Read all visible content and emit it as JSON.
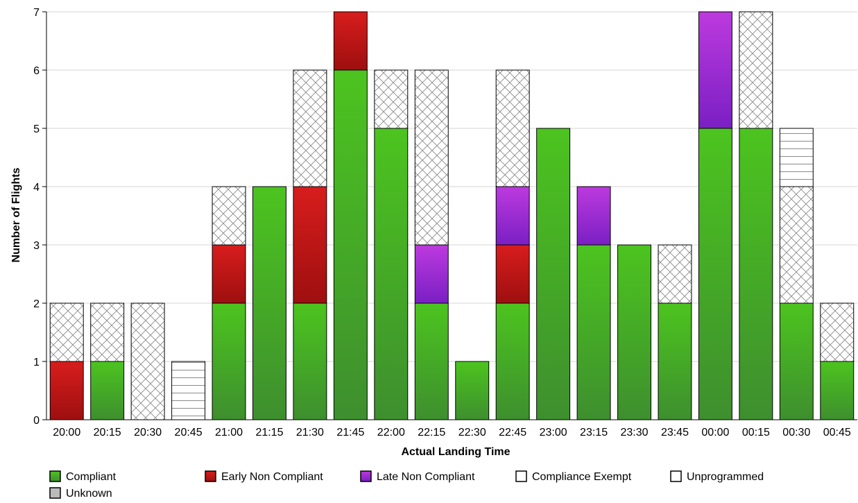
{
  "chart_data": {
    "type": "bar",
    "stacked": true,
    "xlabel": "Actual Landing Time",
    "ylabel": "Number of Flights",
    "ylim": [
      0,
      7
    ],
    "yticks": [
      0,
      1,
      2,
      3,
      4,
      5,
      6,
      7
    ],
    "grid": true,
    "legend_position": "bottom",
    "categories": [
      "20:00",
      "20:15",
      "20:30",
      "20:45",
      "21:00",
      "21:15",
      "21:30",
      "21:45",
      "22:00",
      "22:15",
      "22:30",
      "22:45",
      "23:00",
      "23:15",
      "23:30",
      "23:45",
      "00:00",
      "00:15",
      "00:30",
      "00:45"
    ],
    "series": [
      {
        "name": "Compliant",
        "color": "#3a9a2a",
        "pattern": "green-gradient",
        "values": [
          0,
          1,
          0,
          0,
          2,
          4,
          2,
          6,
          5,
          2,
          1,
          2,
          5,
          3,
          3,
          2,
          5,
          5,
          2,
          1
        ]
      },
      {
        "name": "Early Non Compliant",
        "color": "#b01414",
        "pattern": "red-gradient",
        "values": [
          1,
          0,
          0,
          0,
          1,
          0,
          2,
          1,
          0,
          0,
          0,
          1,
          0,
          0,
          0,
          0,
          0,
          0,
          0,
          0
        ]
      },
      {
        "name": "Late Non Compliant",
        "color": "#8a28c8",
        "pattern": "purple-gradient",
        "values": [
          0,
          0,
          0,
          0,
          0,
          0,
          0,
          0,
          0,
          1,
          0,
          1,
          0,
          1,
          0,
          0,
          2,
          0,
          0,
          0
        ]
      },
      {
        "name": "Compliance Exempt",
        "color": "#ffffff",
        "pattern": "crosshatch",
        "values": [
          1,
          1,
          2,
          0,
          1,
          0,
          2,
          0,
          1,
          3,
          0,
          2,
          0,
          0,
          0,
          1,
          0,
          2,
          2,
          1
        ]
      },
      {
        "name": "Unprogrammed",
        "color": "#ffffff",
        "pattern": "horizontal-lines",
        "values": [
          0,
          0,
          0,
          1,
          0,
          0,
          0,
          0,
          0,
          0,
          0,
          0,
          0,
          0,
          0,
          0,
          0,
          0,
          1,
          0
        ]
      },
      {
        "name": "Unknown",
        "color": "#bbbbbb",
        "pattern": "solid",
        "values": [
          0,
          0,
          0,
          0,
          0,
          0,
          0,
          0,
          0,
          0,
          0,
          0,
          0,
          0,
          0,
          0,
          0,
          0,
          0,
          0
        ]
      }
    ]
  }
}
